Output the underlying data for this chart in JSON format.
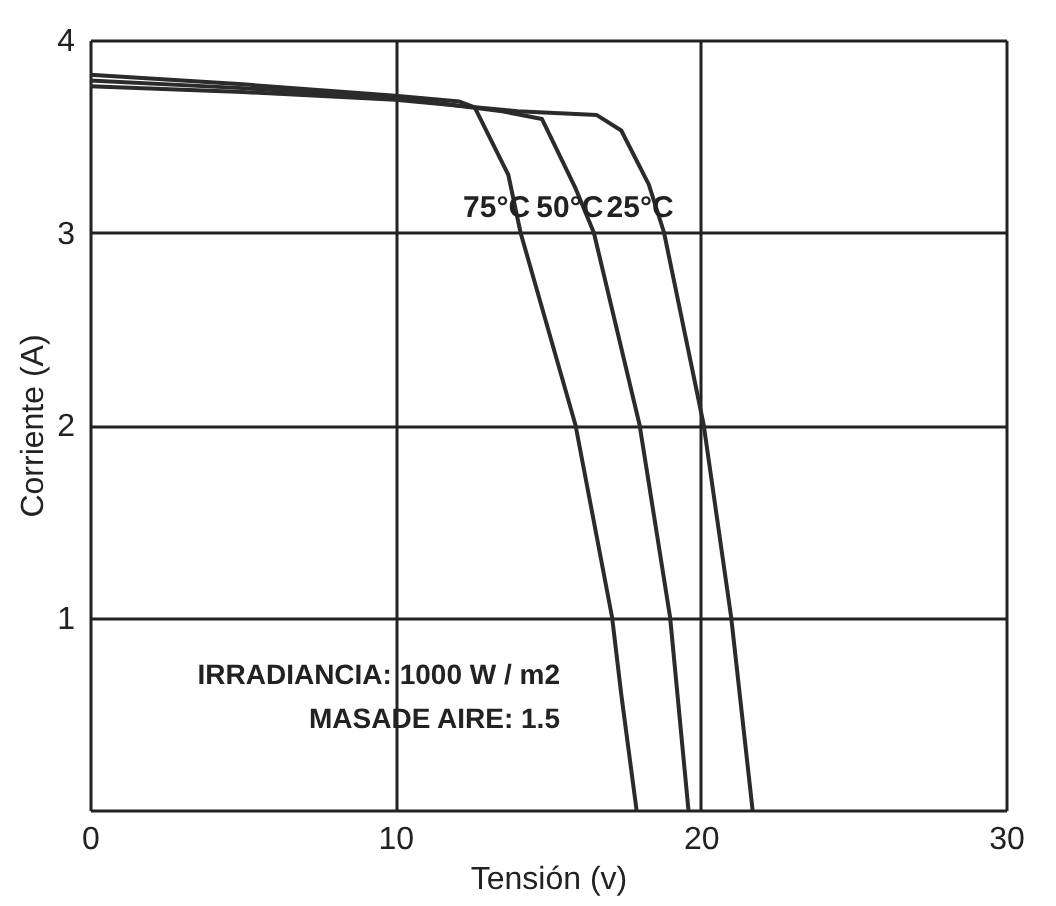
{
  "chart_data": {
    "type": "line",
    "xlabel": "Tensión (v)",
    "ylabel": "Corriente (A)",
    "xlim": [
      0,
      30
    ],
    "ylim": [
      0,
      4
    ],
    "xticks": [
      0,
      10,
      20,
      30
    ],
    "yticks": [
      {
        "value": 0,
        "label": null
      },
      1,
      2,
      3,
      4
    ],
    "grid": true,
    "legend": false,
    "marker": "none",
    "line_style": "solid",
    "series": [
      {
        "name": "75°C",
        "color": "#2b2b2b",
        "x": [
          0,
          5,
          10,
          12.1,
          12.6,
          13.7,
          14.1,
          15.9,
          17.1,
          17.4,
          17.9
        ],
        "values": [
          3.82,
          3.77,
          3.71,
          3.68,
          3.65,
          3.3,
          3.0,
          2.0,
          1.0,
          0.6,
          0
        ]
      },
      {
        "name": "50°C",
        "color": "#2b2b2b",
        "x": [
          0,
          5,
          10,
          13.5,
          14.8,
          15.9,
          16.5,
          18.0,
          19.0,
          19.6
        ],
        "values": [
          3.79,
          3.75,
          3.7,
          3.63,
          3.59,
          3.23,
          3.0,
          2.0,
          1.0,
          0
        ]
      },
      {
        "name": "25°C",
        "color": "#2b2b2b",
        "x": [
          0,
          5,
          10,
          14,
          16.6,
          17.4,
          18.3,
          18.8,
          20.1,
          21.0,
          21.7
        ],
        "values": [
          3.76,
          3.73,
          3.69,
          3.63,
          3.61,
          3.53,
          3.25,
          3.0,
          2.0,
          1.0,
          0
        ]
      }
    ],
    "annotations": [
      "IRRADIANCIA: 1000 W / m2",
      "MASADE AIRE: 1.5"
    ]
  }
}
